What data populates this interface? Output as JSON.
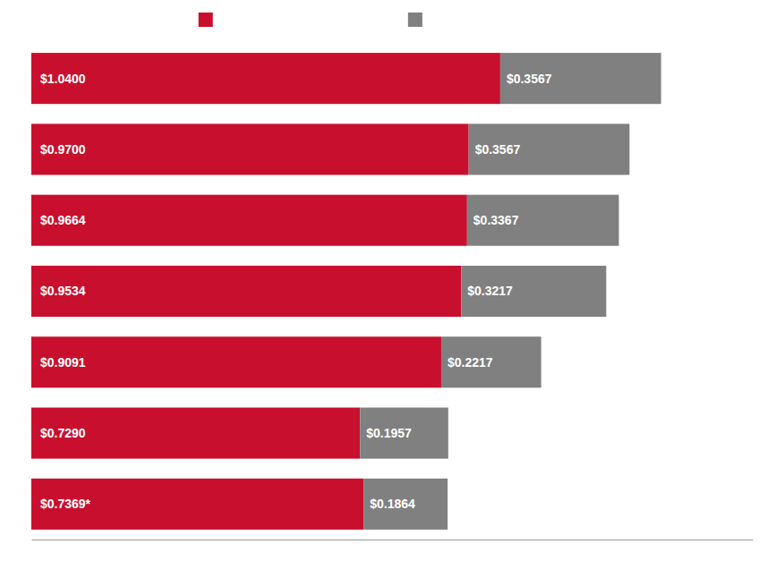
{
  "chart_data": {
    "type": "bar",
    "orientation": "horizontal",
    "stacked": true,
    "categories": [
      null,
      null,
      null,
      null,
      null,
      null,
      null
    ],
    "series": [
      {
        "color": "#C8102E",
        "values": [
          1.04,
          0.97,
          0.9664,
          0.9534,
          0.9091,
          0.729,
          0.7369
        ],
        "value_labels": [
          "$1.0400",
          "$0.9700",
          "$0.9664",
          "$0.9534",
          "$0.9091",
          "$0.7290",
          "$0.7369*"
        ]
      },
      {
        "color": "#808080",
        "values": [
          0.3567,
          0.3567,
          0.3367,
          0.3217,
          0.2217,
          0.1957,
          0.1864
        ],
        "value_labels": [
          "$0.3567",
          "$0.3567",
          "$0.3367",
          "$0.3217",
          "$0.2217",
          "$0.1957",
          "$0.1864"
        ]
      }
    ],
    "xlim": [
      0,
      1.6
    ],
    "tick_labels": false,
    "data_labels": true,
    "legend": "top",
    "grid": false
  }
}
